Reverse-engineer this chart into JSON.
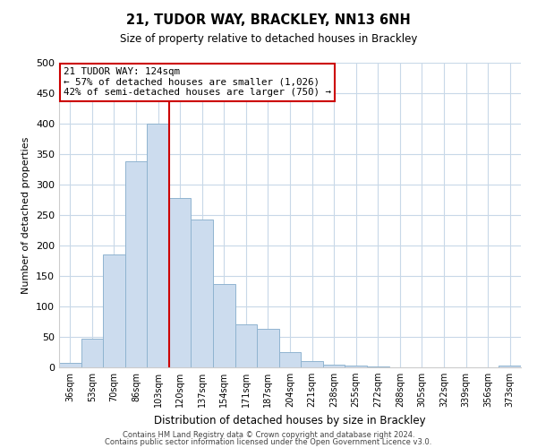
{
  "title": "21, TUDOR WAY, BRACKLEY, NN13 6NH",
  "subtitle": "Size of property relative to detached houses in Brackley",
  "xlabel": "Distribution of detached houses by size in Brackley",
  "ylabel": "Number of detached properties",
  "bar_labels": [
    "36sqm",
    "53sqm",
    "70sqm",
    "86sqm",
    "103sqm",
    "120sqm",
    "137sqm",
    "154sqm",
    "171sqm",
    "187sqm",
    "204sqm",
    "221sqm",
    "238sqm",
    "255sqm",
    "272sqm",
    "288sqm",
    "305sqm",
    "322sqm",
    "339sqm",
    "356sqm",
    "373sqm"
  ],
  "bar_values": [
    8,
    47,
    185,
    338,
    400,
    278,
    242,
    137,
    70,
    63,
    25,
    10,
    5,
    3,
    2,
    0,
    0,
    0,
    0,
    0,
    3
  ],
  "bar_color": "#ccdcee",
  "bar_edge_color": "#90b4d0",
  "vline_x": 4.5,
  "vline_color": "#cc0000",
  "annotation_text": "21 TUDOR WAY: 124sqm\n← 57% of detached houses are smaller (1,026)\n42% of semi-detached houses are larger (750) →",
  "annotation_box_color": "#ffffff",
  "annotation_box_edge": "#cc0000",
  "ylim": [
    0,
    500
  ],
  "yticks": [
    0,
    50,
    100,
    150,
    200,
    250,
    300,
    350,
    400,
    450,
    500
  ],
  "footer_line1": "Contains HM Land Registry data © Crown copyright and database right 2024.",
  "footer_line2": "Contains public sector information licensed under the Open Government Licence v3.0.",
  "background_color": "#ffffff",
  "grid_color": "#c8d8e8"
}
